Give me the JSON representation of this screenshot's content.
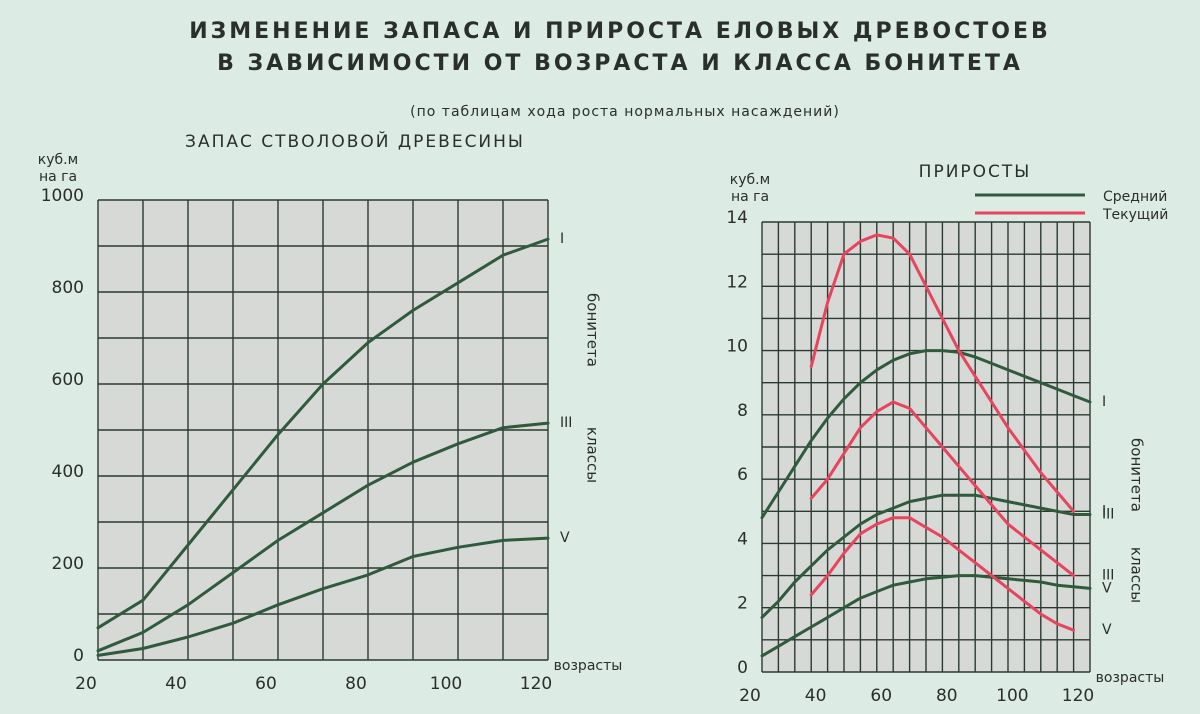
{
  "header": {
    "title": [
      "ИЗМЕНЕНИЕ  ЗАПАСА  И  ПРИРОСТА ЕЛОВЫХ ДРЕВОСТОЕВ",
      "В ЗАВИСИМОСТИ ОТ  ВОЗРАСТА  И КЛАССА БОНИТЕТА"
    ],
    "subtitle": "(по таблицам хода роста нормальных насаждений)"
  },
  "chart_data": [
    {
      "type": "line",
      "title": "ЗАПАС СТВОЛОВОЙ ДРЕВЕСИНЫ",
      "ylabel": [
        "куб.м",
        "на га"
      ],
      "xlabel": "возрасты",
      "x": [
        20,
        30,
        40,
        50,
        60,
        70,
        80,
        90,
        100,
        110,
        120
      ],
      "xlim": [
        20,
        120
      ],
      "ylim": [
        0,
        1000
      ],
      "xticks": [
        20,
        40,
        60,
        80,
        100,
        120
      ],
      "yticks": [
        0,
        200,
        400,
        600,
        800,
        1000
      ],
      "xgrid": [
        20,
        30,
        40,
        50,
        60,
        70,
        80,
        90,
        100,
        110,
        120
      ],
      "ygrid": [
        0,
        100,
        200,
        300,
        400,
        500,
        600,
        700,
        800,
        900,
        1000
      ],
      "side_label": [
        "бонитета",
        "классы"
      ],
      "series": [
        {
          "label": "I",
          "color": "#2f5a3c",
          "values": [
            70,
            130,
            250,
            370,
            490,
            600,
            690,
            760,
            820,
            880,
            915
          ]
        },
        {
          "label": "III",
          "color": "#2f5a3c",
          "values": [
            20,
            60,
            120,
            190,
            260,
            320,
            380,
            430,
            470,
            505,
            515
          ]
        },
        {
          "label": "V",
          "color": "#2f5a3c",
          "values": [
            10,
            25,
            50,
            80,
            120,
            155,
            185,
            225,
            245,
            260,
            265
          ]
        }
      ]
    },
    {
      "type": "line",
      "title": "ПРИРОСТЫ",
      "ylabel": [
        "куб.м",
        "на га"
      ],
      "xlabel": "возрасты",
      "x": [
        20,
        25,
        30,
        35,
        40,
        45,
        50,
        55,
        60,
        65,
        70,
        75,
        80,
        85,
        90,
        95,
        100,
        105,
        110,
        115,
        120
      ],
      "xlim": [
        20,
        120
      ],
      "ylim": [
        0,
        14
      ],
      "xticks": [
        20,
        40,
        60,
        80,
        100,
        120
      ],
      "yticks": [
        0,
        2,
        4,
        6,
        8,
        10,
        12,
        14
      ],
      "xgrid": [
        20,
        25,
        30,
        35,
        40,
        45,
        50,
        55,
        60,
        65,
        70,
        75,
        80,
        85,
        90,
        95,
        100,
        105,
        110,
        115,
        120
      ],
      "ygrid": [
        0,
        1,
        2,
        3,
        4,
        5,
        6,
        7,
        8,
        9,
        10,
        11,
        12,
        13,
        14
      ],
      "side_label": [
        "бонитета",
        "классы"
      ],
      "legend": [
        {
          "name": "Средний",
          "color": "#2f5a3c"
        },
        {
          "name": "Текущий",
          "color": "#e8445e"
        }
      ],
      "series": [
        {
          "label": "I",
          "color": "#2f5a3c",
          "values": [
            4.8,
            5.6,
            6.4,
            7.2,
            7.9,
            8.5,
            9.0,
            9.4,
            9.7,
            9.9,
            10.0,
            10.0,
            9.95,
            9.8,
            9.6,
            9.4,
            9.2,
            9.0,
            8.8,
            8.6,
            8.4
          ]
        },
        {
          "label": "III",
          "color": "#2f5a3c",
          "values": [
            1.7,
            2.2,
            2.8,
            3.3,
            3.8,
            4.2,
            4.6,
            4.9,
            5.1,
            5.3,
            5.4,
            5.5,
            5.5,
            5.5,
            5.4,
            5.3,
            5.2,
            5.1,
            5.0,
            4.9,
            4.9
          ]
        },
        {
          "label": "V",
          "color": "#2f5a3c",
          "values": [
            0.5,
            0.8,
            1.1,
            1.4,
            1.7,
            2.0,
            2.3,
            2.5,
            2.7,
            2.8,
            2.9,
            2.95,
            3.0,
            3.0,
            2.95,
            2.9,
            2.85,
            2.8,
            2.7,
            2.65,
            2.6
          ]
        },
        {
          "label": "I",
          "color": "#e8445e",
          "values": [
            null,
            null,
            null,
            9.5,
            11.5,
            13.0,
            13.4,
            13.6,
            13.5,
            13.0,
            12.0,
            11.0,
            10.0,
            9.2,
            8.4,
            7.6,
            6.9,
            6.2,
            5.6,
            5.0,
            null
          ]
        },
        {
          "label": "III",
          "color": "#e8445e",
          "values": [
            null,
            null,
            null,
            5.4,
            6.0,
            6.8,
            7.6,
            8.1,
            8.4,
            8.2,
            7.6,
            7.0,
            6.4,
            5.8,
            5.2,
            4.6,
            4.2,
            3.8,
            3.4,
            3.0,
            null
          ]
        },
        {
          "label": "V",
          "color": "#e8445e",
          "values": [
            null,
            null,
            null,
            2.4,
            3.0,
            3.7,
            4.3,
            4.6,
            4.8,
            4.8,
            4.5,
            4.2,
            3.8,
            3.4,
            3.0,
            2.6,
            2.2,
            1.8,
            1.5,
            1.3,
            null
          ]
        }
      ]
    }
  ]
}
